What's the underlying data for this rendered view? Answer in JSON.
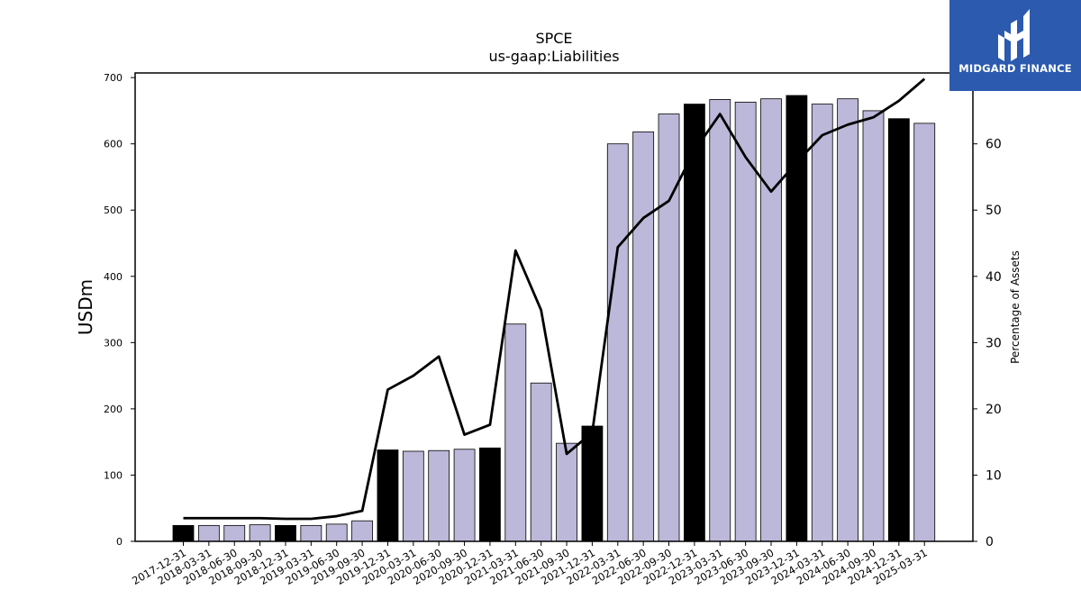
{
  "chart_data": {
    "type": "bar",
    "title": "SPCE",
    "subtitle": "us-gaap:Liabilities",
    "ylabel": "USDm",
    "y2label": "Percentage of Assets",
    "ylim": [
      0,
      707
    ],
    "y2lim": [
      0,
      70.7
    ],
    "yticks": [
      0,
      100,
      200,
      300,
      400,
      500,
      600,
      700
    ],
    "y2ticks": [
      0,
      10,
      20,
      30,
      40,
      50,
      60,
      70
    ],
    "categories": [
      "2017-12-31",
      "2018-03-31",
      "2018-06-30",
      "2018-09-30",
      "2018-12-31",
      "2019-03-31",
      "2019-06-30",
      "2019-09-30",
      "2019-12-31",
      "2020-03-31",
      "2020-06-30",
      "2020-09-30",
      "2020-12-31",
      "2021-03-31",
      "2021-06-30",
      "2021-09-30",
      "2021-12-31",
      "2022-03-31",
      "2022-06-30",
      "2022-09-30",
      "2022-12-31",
      "2023-03-31",
      "2023-06-30",
      "2023-09-30",
      "2023-12-31",
      "2024-03-31",
      "2024-06-30",
      "2024-09-30",
      "2024-12-31",
      "2025-03-31"
    ],
    "series": [
      {
        "kind": "bar",
        "values": [
          24,
          24,
          24,
          25,
          24,
          24,
          26,
          31,
          138,
          136,
          137,
          139,
          141,
          328,
          239,
          148,
          174,
          600,
          618,
          645,
          660,
          667,
          663,
          668,
          673,
          660,
          668,
          650,
          638,
          631
        ],
        "highlight": [
          true,
          false,
          false,
          false,
          true,
          false,
          false,
          false,
          true,
          false,
          false,
          false,
          true,
          false,
          false,
          false,
          true,
          false,
          false,
          false,
          true,
          false,
          false,
          false,
          true,
          false,
          false,
          false,
          true,
          false
        ]
      },
      {
        "kind": "line",
        "axis": "right",
        "values": [
          3.5,
          3.5,
          3.5,
          3.5,
          3.4,
          3.4,
          3.8,
          4.6,
          22.9,
          25.0,
          27.9,
          16.1,
          17.6,
          43.9,
          34.9,
          13.2,
          16.4,
          44.4,
          48.8,
          51.4,
          59.0,
          64.5,
          58.0,
          52.8,
          57.2,
          61.3,
          62.9,
          64.0,
          66.5,
          69.8
        ]
      }
    ],
    "colors": {
      "bar": "#bcb8d9",
      "bar_highlight": "#000000",
      "line": "#000000"
    },
    "grid": false,
    "legend": "none"
  },
  "watermark": {
    "text": "MIDGARD FINANCE",
    "bg": "#2b5aae"
  }
}
